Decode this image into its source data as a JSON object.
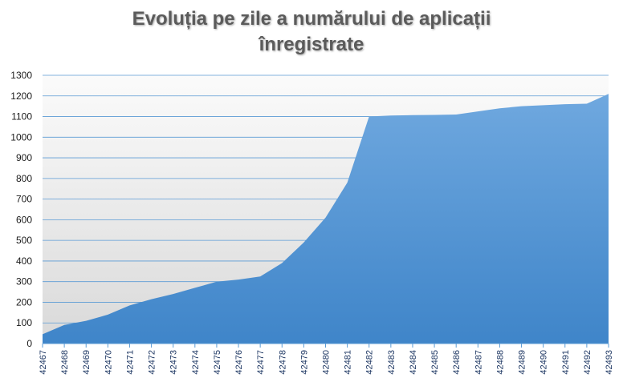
{
  "chart_data": {
    "type": "area",
    "title_lines": [
      "Evoluția pe zile a numărului de aplicații",
      "înregistrate"
    ],
    "xlabel": "",
    "ylabel": "",
    "ylim": [
      0,
      1300
    ],
    "y_ticks": [
      0,
      100,
      200,
      300,
      400,
      500,
      600,
      700,
      800,
      900,
      1000,
      1100,
      1200,
      1300
    ],
    "grid": true,
    "legend": "none",
    "colors": {
      "area_top": "#6fa8df",
      "area_bottom": "#3f85c9",
      "plot_bg_top": "#fbfbfb",
      "plot_bg_bottom": "#d9d9d9",
      "gridline": "#5b9bd5"
    },
    "x": [
      42467,
      42468,
      42469,
      42470,
      42471,
      42472,
      42473,
      42474,
      42475,
      42476,
      42477,
      42478,
      42479,
      42480,
      42481,
      42482,
      42483,
      42484,
      42485,
      42486,
      42487,
      42488,
      42489,
      42490,
      42491,
      42492,
      42493
    ],
    "series": [
      {
        "values": [
          45,
          90,
          110,
          140,
          185,
          215,
          240,
          270,
          300,
          310,
          325,
          390,
          490,
          610,
          780,
          1100,
          1105,
          1107,
          1108,
          1110,
          1125,
          1140,
          1150,
          1155,
          1160,
          1162,
          1210
        ]
      }
    ]
  }
}
